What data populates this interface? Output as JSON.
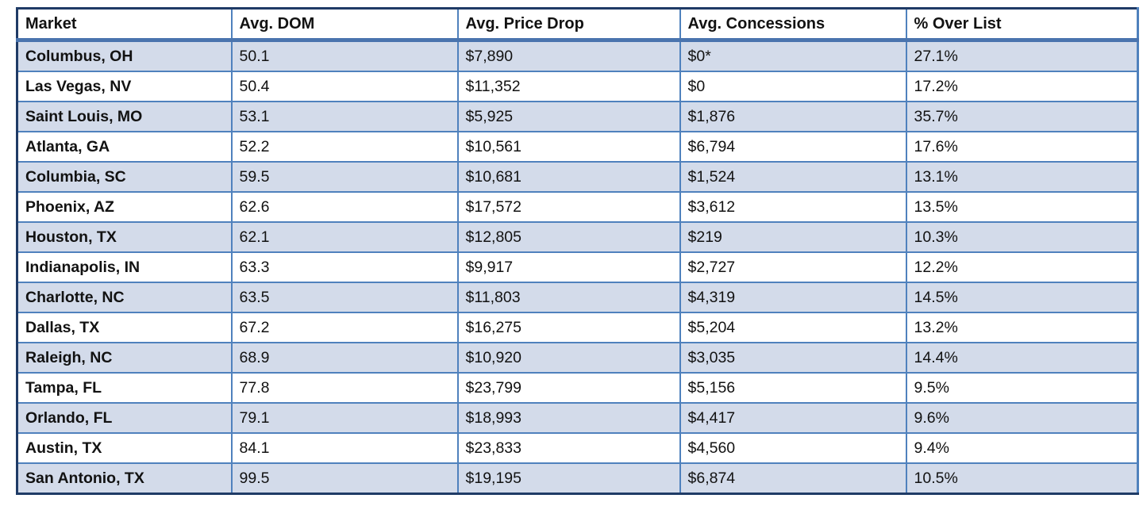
{
  "chart_data": {
    "type": "table",
    "title": "",
    "columns": [
      "Market",
      "Avg. DOM",
      "Avg. Price Drop",
      "Avg. Concessions",
      "% Over List"
    ],
    "rows": [
      [
        "Columbus, OH",
        "50.1",
        "$7,890",
        "$0*",
        "27.1%"
      ],
      [
        "Las Vegas, NV",
        "50.4",
        "$11,352",
        "$0",
        "17.2%"
      ],
      [
        "Saint Louis, MO",
        "53.1",
        "$5,925",
        "$1,876",
        "35.7%"
      ],
      [
        "Atlanta, GA",
        "52.2",
        "$10,561",
        "$6,794",
        "17.6%"
      ],
      [
        "Columbia, SC",
        "59.5",
        "$10,681",
        "$1,524",
        "13.1%"
      ],
      [
        "Phoenix, AZ",
        "62.6",
        "$17,572",
        "$3,612",
        "13.5%"
      ],
      [
        "Houston, TX",
        "62.1",
        "$12,805",
        "$219",
        "10.3%"
      ],
      [
        "Indianapolis, IN",
        "63.3",
        "$9,917",
        "$2,727",
        "12.2%"
      ],
      [
        "Charlotte, NC",
        "63.5",
        "$11,803",
        "$4,319",
        "14.5%"
      ],
      [
        "Dallas, TX",
        "67.2",
        "$16,275",
        "$5,204",
        "13.2%"
      ],
      [
        "Raleigh, NC",
        "68.9",
        "$10,920",
        "$3,035",
        "14.4%"
      ],
      [
        "Tampa, FL",
        "77.8",
        "$23,799",
        "$5,156",
        "9.5%"
      ],
      [
        "Orlando, FL",
        "79.1",
        "$18,993",
        "$4,417",
        "9.6%"
      ],
      [
        "Austin, TX",
        "84.1",
        "$23,833",
        "$4,560",
        "9.4%"
      ],
      [
        "San Antonio, TX",
        "99.5",
        "$19,195",
        "$6,874",
        "10.5%"
      ]
    ],
    "layout_hints": {
      "banded_rows": true,
      "first_band": "blue",
      "grid": true
    }
  },
  "colors": {
    "row_band_fill": "#d3dbea",
    "grid_border": "#4f81bd",
    "outer_border": "#1f3b66",
    "header_separator": "#4a74ae",
    "text": "#121212",
    "background": "#ffffff"
  }
}
